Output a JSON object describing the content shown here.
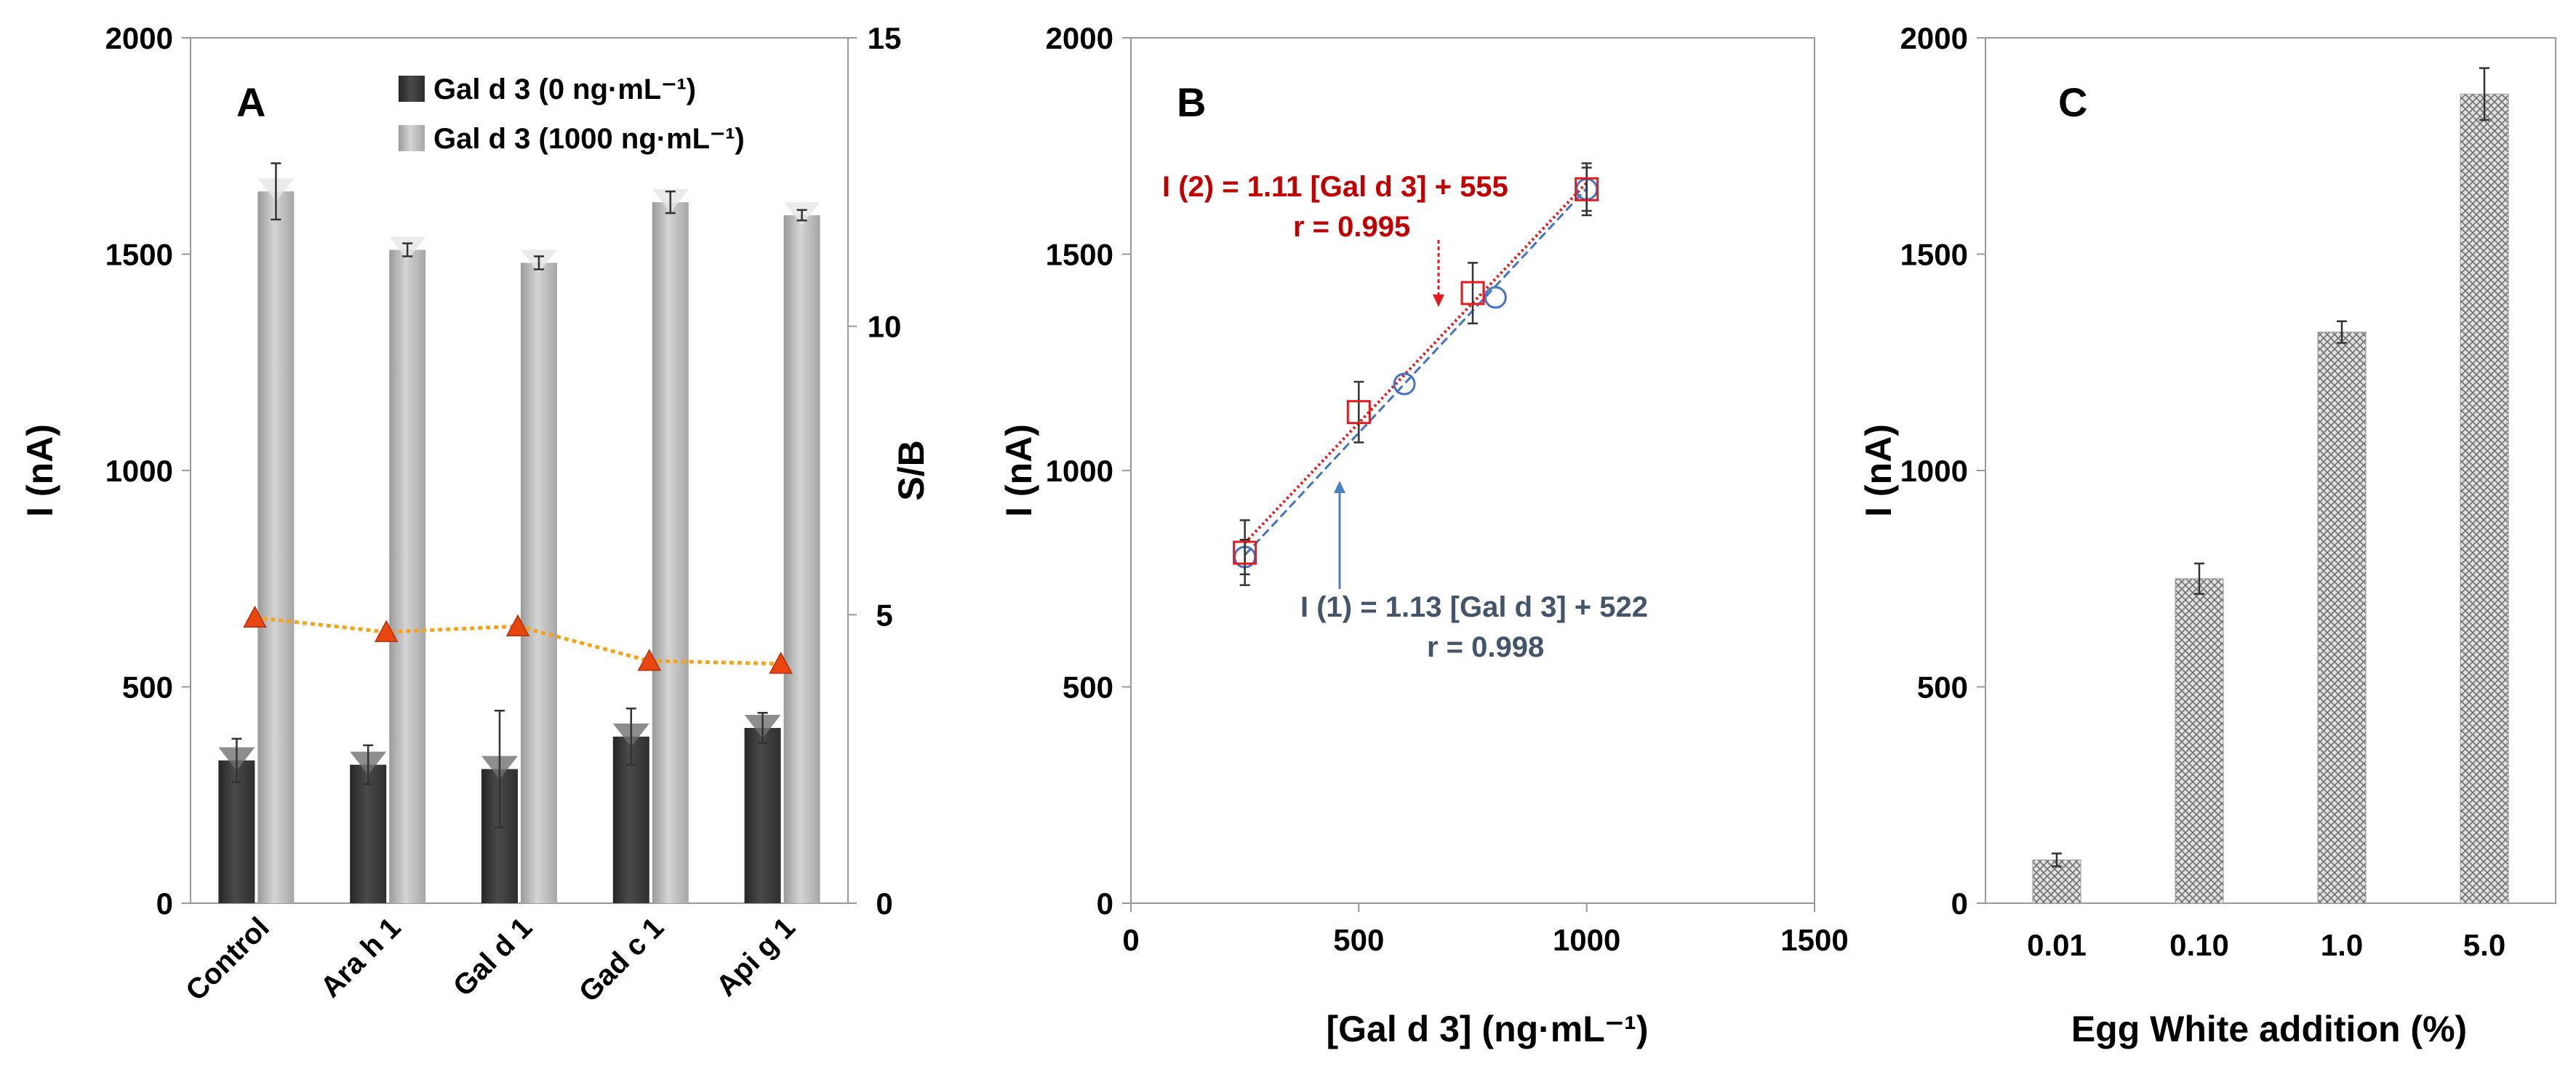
{
  "chart_data": [
    {
      "type": "bar",
      "panel_label": "A",
      "categories": [
        "Control",
        "Ara h 1",
        "Gal d 1",
        "Gad c 1",
        "Api g 1"
      ],
      "ylabel": "I (nA)",
      "ylim": [
        0,
        2000
      ],
      "yticks": [
        "0",
        "500",
        "1000",
        "1500",
        "2000"
      ],
      "y2label": "S/B",
      "y2lim": [
        0,
        15
      ],
      "y2ticks": [
        "0",
        "5",
        "10",
        "15"
      ],
      "legend_position": "top",
      "colors": {
        "series_0": "#3f3f3f",
        "series_1": "#bdbdbd",
        "sb_line": "#f7a21b",
        "sb_marker": "#e8450f"
      },
      "series": [
        {
          "name": "Gal d 3 (0 ng·mL⁻¹)",
          "values": [
            330,
            320,
            310,
            385,
            405
          ],
          "errors": [
            50,
            45,
            135,
            65,
            35
          ]
        },
        {
          "name": "Gal d 3 (1000 ng·mL⁻¹)",
          "values": [
            1645,
            1510,
            1480,
            1620,
            1590
          ],
          "errors": [
            65,
            15,
            15,
            25,
            12
          ]
        }
      ],
      "sb_values": [
        4.95,
        4.7,
        4.8,
        4.2,
        4.15
      ]
    },
    {
      "type": "scatter",
      "panel_label": "B",
      "xlabel": "[Gal d 3] (ng·mL⁻¹)",
      "ylabel": "I (nA)",
      "xlim": [
        0,
        1500
      ],
      "ylim": [
        0,
        2000
      ],
      "xticks": [
        "0",
        "500",
        "1000",
        "1500"
      ],
      "yticks": [
        "0",
        "500",
        "1000",
        "1500",
        "2000"
      ],
      "colors": {
        "series_0": "#4472c4",
        "series_1": "#e41a1c"
      },
      "series": [
        {
          "marker": "circle",
          "x": [
            250,
            600,
            800,
            1000
          ],
          "y": [
            800,
            1200,
            1400,
            1650
          ],
          "errors": [
            40,
            0,
            0,
            50
          ]
        },
        {
          "marker": "square",
          "x": [
            250,
            500,
            750,
            1000
          ],
          "y": [
            810,
            1135,
            1410,
            1650
          ],
          "errors": [
            75,
            70,
            70,
            60
          ]
        }
      ],
      "annotations": [
        {
          "text": "I (2) = 1.11 [Gal d 3] + 555",
          "color": "#c00000"
        },
        {
          "text": "r = 0.995",
          "color": "#c00000"
        },
        {
          "text": "I (1) = 1.13 [Gal d 3] + 522",
          "color": "#44546a"
        },
        {
          "text": "r = 0.998",
          "color": "#44546a"
        }
      ]
    },
    {
      "type": "bar",
      "panel_label": "C",
      "categories": [
        "0.01",
        "0.10",
        "1.0",
        "5.0"
      ],
      "xlabel": "Egg White addition (%)",
      "ylabel": "I (nA)",
      "ylim": [
        0,
        2000
      ],
      "yticks": [
        "0",
        "500",
        "1000",
        "1500",
        "2000"
      ],
      "colors": {
        "bar": "#b0b0b0"
      },
      "series": [
        {
          "values": [
            100,
            750,
            1320,
            1870
          ],
          "errors": [
            15,
            35,
            25,
            60
          ]
        }
      ]
    }
  ]
}
